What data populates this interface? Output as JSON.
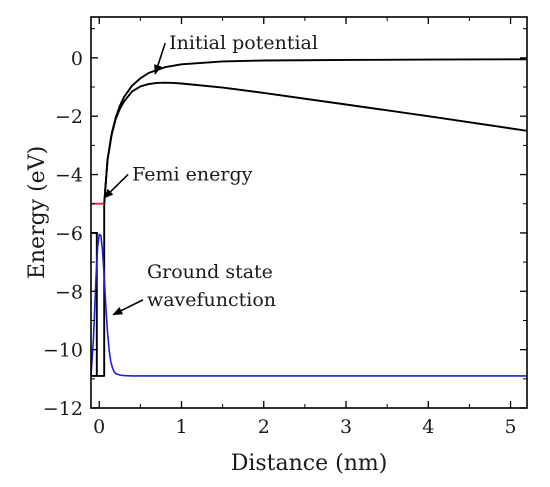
{
  "chart_data": {
    "type": "line",
    "title": "",
    "xlabel": "Distance (nm)",
    "ylabel": "Energy (eV)",
    "xlim": [
      -0.1,
      5.2
    ],
    "ylim": [
      -12,
      1.4
    ],
    "x_ticks": [
      0,
      1,
      2,
      3,
      4,
      5
    ],
    "x_tick_labels": [
      "0",
      "1",
      "2",
      "3",
      "4",
      "5"
    ],
    "y_ticks": [
      0,
      -2,
      -4,
      -6,
      -8,
      -10,
      -12
    ],
    "y_tick_labels": [
      "0",
      "−2",
      "−4",
      "−6",
      "−8",
      "−10",
      "−12"
    ],
    "grid": false,
    "series": [
      {
        "color": "#000000",
        "x": [
          0.06,
          0.1,
          0.15,
          0.2,
          0.25,
          0.3,
          0.4,
          0.5,
          0.6,
          0.8,
          1.0,
          1.5,
          2.0,
          3.0,
          4.0,
          5.2
        ],
        "y": [
          -5.0,
          -3.5,
          -2.6,
          -2.05,
          -1.65,
          -1.35,
          -0.95,
          -0.7,
          -0.52,
          -0.32,
          -0.22,
          -0.12,
          -0.09,
          -0.07,
          -0.06,
          -0.05
        ]
      },
      {
        "color": "#000000",
        "x": [
          0.06,
          0.1,
          0.15,
          0.2,
          0.25,
          0.3,
          0.4,
          0.5,
          0.6,
          0.7,
          0.8,
          0.9,
          1.0,
          1.5,
          2.0,
          3.0,
          4.0,
          5.2
        ],
        "y": [
          -5.0,
          -3.5,
          -2.65,
          -2.1,
          -1.75,
          -1.5,
          -1.15,
          -0.98,
          -0.9,
          -0.86,
          -0.85,
          -0.86,
          -0.88,
          -1.02,
          -1.2,
          -1.6,
          -2.0,
          -2.5
        ]
      },
      {
        "color": "#000000",
        "x": [
          -0.1,
          0.06,
          0.06,
          0.06
        ],
        "y": [
          -10.9,
          -10.9,
          -10.9,
          -5.0
        ]
      },
      {
        "color": "#000000",
        "x": [
          -0.1,
          -0.03,
          -0.03,
          -0.03
        ],
        "y": [
          -6.0,
          -6.0,
          -6.0,
          -10.9
        ]
      },
      {
        "color": "#e8202a",
        "x": [
          -0.1,
          0.06
        ],
        "y": [
          -5.0,
          -5.0
        ]
      },
      {
        "color": "#1f1fd6",
        "x": [
          -0.1,
          -0.07,
          -0.04,
          -0.02,
          0.0,
          0.02,
          0.04,
          0.06,
          0.08,
          0.1,
          0.12,
          0.14,
          0.16,
          0.18,
          0.2,
          0.25,
          0.3,
          0.4,
          0.6,
          1.0,
          2.0,
          3.0,
          4.0,
          5.2
        ],
        "y": [
          -10.9,
          -9.6,
          -7.6,
          -6.5,
          -6.05,
          -6.1,
          -6.6,
          -7.5,
          -8.5,
          -9.4,
          -10.0,
          -10.4,
          -10.62,
          -10.75,
          -10.82,
          -10.87,
          -10.89,
          -10.9,
          -10.9,
          -10.9,
          -10.9,
          -10.9,
          -10.9,
          -10.9
        ]
      }
    ],
    "annotations": [
      {
        "text": "Initial potential",
        "text_at": [
          0.85,
          0.3
        ],
        "point_at": [
          0.68,
          -0.55
        ]
      },
      {
        "text": "Femi energy",
        "text_at": [
          0.4,
          -4.2
        ],
        "point_at": [
          0.06,
          -4.8
        ]
      },
      {
        "text": "Ground state",
        "text_at": [
          0.58,
          -7.55
        ]
      },
      {
        "text": "wavefunction",
        "text_at": [
          0.58,
          -8.5
        ],
        "point_at": [
          0.17,
          -8.8
        ]
      }
    ]
  }
}
